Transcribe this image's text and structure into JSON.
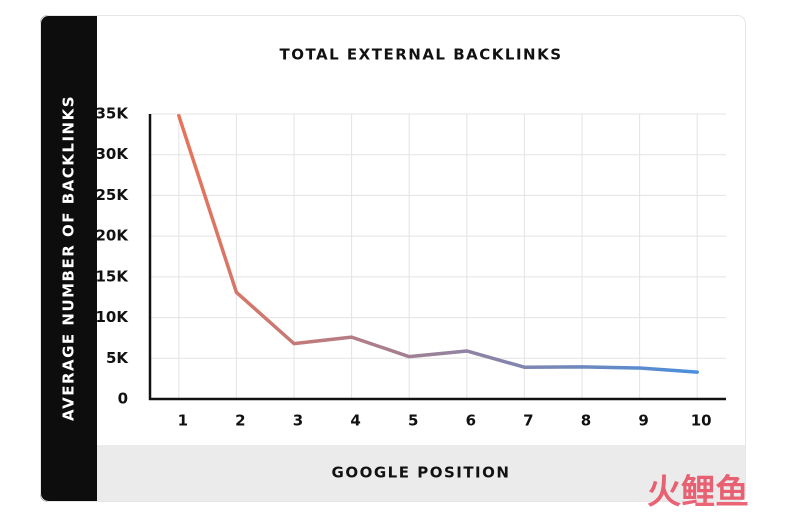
{
  "chart_data": {
    "type": "line",
    "title": "TOTAL EXTERNAL BACKLINKS",
    "x_label": "GOOGLE POSITION",
    "y_label": "AVERAGE NUMBER OF BACKLINKS",
    "x": [
      1,
      2,
      3,
      4,
      5,
      6,
      7,
      8,
      9,
      10
    ],
    "xlim": [
      0.5,
      10.5
    ],
    "xticks": [
      1,
      2,
      3,
      4,
      5,
      6,
      7,
      8,
      9,
      10
    ],
    "series": [
      {
        "name": "Total external backlinks",
        "color": [
          "#e8735a",
          "#4a8fdc"
        ],
        "values": [
          34800,
          13100,
          6800,
          7600,
          5200,
          5900,
          3900,
          3950,
          3800,
          3300
        ]
      }
    ],
    "ylim": [
      0,
      35000
    ],
    "yticks": [
      0,
      {
        "value": 5000,
        "label": "5K"
      },
      {
        "value": 10000,
        "label": "10K"
      },
      {
        "value": 15000,
        "label": "15K"
      },
      {
        "value": 20000,
        "label": "20K"
      },
      {
        "value": 25000,
        "label": "25K"
      },
      {
        "value": 30000,
        "label": "30K"
      },
      {
        "value": 35000,
        "label": "35K"
      }
    ],
    "grid": true,
    "watermark": "火鲤鱼"
  }
}
